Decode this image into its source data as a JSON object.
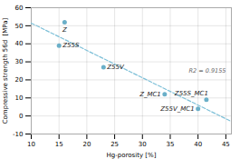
{
  "chart_data": {
    "type": "scatter",
    "xlabel": "Hg-porosity [%]",
    "ylabel": "Compressive strength 56d  [MPa]",
    "x": [
      16.0,
      15.0,
      23.0,
      34.0,
      40.0,
      41.5
    ],
    "values": [
      52.0,
      39.0,
      27.0,
      12.0,
      4.0,
      9.0
    ],
    "labels": [
      "Z",
      "Z55S",
      "Z55V",
      "Z_MC1",
      "Z55V_MC1",
      "Z55S_MC1"
    ],
    "color": "#6aafc8",
    "trendline": {
      "x": [
        10,
        46
      ],
      "values": [
        51.4805,
        -3.0564
      ],
      "color": "#7ec0d8",
      "line_style": "dashed"
    },
    "annotation": "R2 = 0.9155",
    "xlim": [
      10,
      46
    ],
    "ylim": [
      -10,
      60
    ],
    "xticks": [
      10,
      15,
      20,
      25,
      30,
      35,
      40,
      45
    ],
    "yticks": [
      -10,
      0,
      10,
      20,
      30,
      40,
      50,
      60
    ],
    "grid": true
  }
}
